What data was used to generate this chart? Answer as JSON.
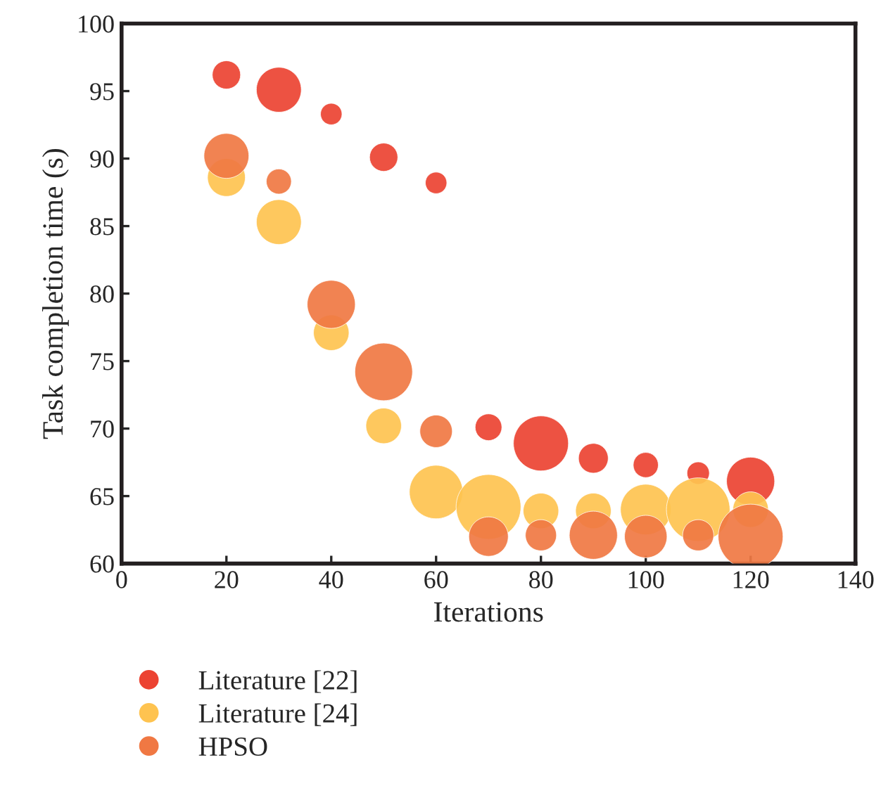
{
  "chart_data": {
    "type": "bubble",
    "xlabel": "Iterations",
    "ylabel": "Task completion time (s)",
    "x": [
      20,
      30,
      40,
      50,
      60,
      70,
      80,
      90,
      100,
      110,
      120
    ],
    "series": [
      {
        "name": "Literature [22]",
        "color": "#ec4332",
        "values": [
          96.2,
          95.1,
          93.3,
          90.1,
          88.2,
          70.1,
          68.9,
          67.8,
          67.3,
          66.7,
          66.1
        ],
        "sizes": [
          0.19,
          0.48,
          0.11,
          0.19,
          0.11,
          0.17,
          0.72,
          0.21,
          0.15,
          0.12,
          0.55
        ]
      },
      {
        "name": "Literature [24]",
        "color": "#fec350",
        "values": [
          88.6,
          85.3,
          77.1,
          70.2,
          65.3,
          64.2,
          63.9,
          63.9,
          64.0,
          64.0,
          64.0
        ],
        "sizes": [
          0.34,
          0.48,
          0.3,
          0.3,
          0.68,
          1.0,
          0.3,
          0.3,
          0.61,
          0.96,
          0.3
        ]
      },
      {
        "name": "HPSO",
        "color": "#f07843",
        "values": [
          90.2,
          88.3,
          79.2,
          74.2,
          69.8,
          62.0,
          62.1,
          62.1,
          62.0,
          62.1,
          62.0
        ],
        "sizes": [
          0.48,
          0.15,
          0.55,
          0.79,
          0.25,
          0.37,
          0.23,
          0.55,
          0.43,
          0.23,
          1.0
        ]
      }
    ],
    "xlim": [
      0,
      140
    ],
    "xticks": [
      0,
      20,
      40,
      60,
      80,
      100,
      120,
      140
    ],
    "ylim": [
      60,
      100
    ],
    "yticks": [
      60,
      65,
      70,
      75,
      80,
      85,
      90,
      95,
      100
    ],
    "grid": false,
    "legend": "bottom left"
  }
}
